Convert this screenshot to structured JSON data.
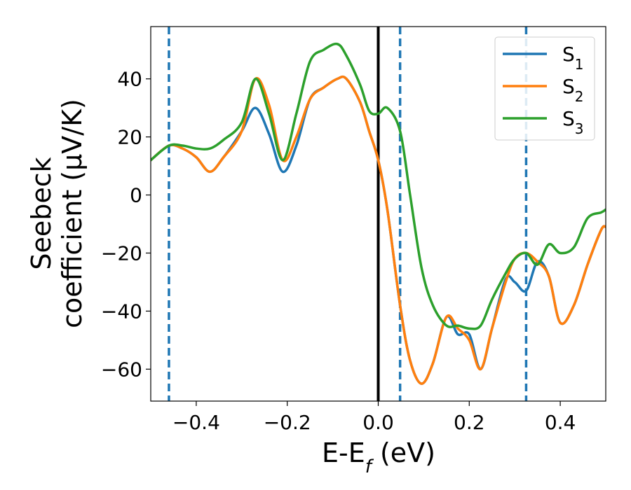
{
  "chart_data": {
    "type": "line",
    "xlabel": "E-E_f (eV)",
    "ylabel": "Seebeck coefficient (μV/K)",
    "ylabel_line1": "Seebeck",
    "ylabel_line2": "coefficient  (μV/K)",
    "xlim": [
      -0.5,
      0.5
    ],
    "ylim": [
      -71,
      58
    ],
    "x_ticks": [
      -0.4,
      -0.2,
      0.0,
      0.2,
      0.4
    ],
    "x_tick_labels": [
      "−0.4",
      "−0.2",
      "0.0",
      "0.2",
      "0.4"
    ],
    "y_ticks": [
      -60,
      -40,
      -20,
      0,
      20,
      40
    ],
    "y_tick_labels": [
      "−60",
      "−40",
      "−20",
      "0",
      "20",
      "40"
    ],
    "grid": false,
    "legend_position": "top-right",
    "vlines": [
      {
        "x": -0.46,
        "style": "dashed",
        "color": "#1f77b4"
      },
      {
        "x": 0.0,
        "style": "solid",
        "color": "#000000"
      },
      {
        "x": 0.048,
        "style": "dashed",
        "color": "#1f77b4"
      },
      {
        "x": 0.325,
        "style": "dashed",
        "color": "#1f77b4"
      }
    ],
    "series": [
      {
        "name": "S1",
        "label_main": "S",
        "label_sub": "1",
        "color": "#1f77b4",
        "x": [
          -0.5,
          -0.46,
          -0.43,
          -0.4,
          -0.37,
          -0.34,
          -0.3,
          -0.27,
          -0.24,
          -0.21,
          -0.18,
          -0.15,
          -0.12,
          -0.09,
          -0.07,
          -0.04,
          -0.02,
          0.0,
          0.02,
          0.048,
          0.07,
          0.095,
          0.12,
          0.15,
          0.175,
          0.2,
          0.225,
          0.25,
          0.28,
          0.3,
          0.325,
          0.35,
          0.375,
          0.4,
          0.43,
          0.46,
          0.49,
          0.5
        ],
        "y": [
          12,
          17,
          16,
          13,
          8,
          13,
          22,
          30,
          21,
          8,
          17,
          33,
          37,
          40,
          40,
          32,
          22,
          12,
          -5,
          -38,
          -57,
          -65,
          -58,
          -42,
          -48,
          -48,
          -60,
          -46,
          -29,
          -30,
          -33,
          -23,
          -28,
          -44,
          -38,
          -24,
          -12,
          -11
        ]
      },
      {
        "name": "S2",
        "label_main": "S",
        "label_sub": "2",
        "color": "#ff7f0e",
        "x": [
          -0.5,
          -0.46,
          -0.43,
          -0.4,
          -0.37,
          -0.34,
          -0.3,
          -0.27,
          -0.24,
          -0.21,
          -0.18,
          -0.15,
          -0.12,
          -0.09,
          -0.07,
          -0.04,
          -0.02,
          0.0,
          0.02,
          0.048,
          0.07,
          0.095,
          0.12,
          0.15,
          0.175,
          0.2,
          0.225,
          0.25,
          0.28,
          0.3,
          0.325,
          0.35,
          0.375,
          0.4,
          0.43,
          0.46,
          0.49,
          0.5
        ],
        "y": [
          12,
          17,
          16,
          13,
          8,
          13,
          22,
          40,
          31,
          12,
          20,
          33,
          37,
          40,
          40,
          32,
          22,
          12,
          -5,
          -38,
          -57,
          -65,
          -58,
          -42,
          -46,
          -50,
          -60,
          -46,
          -30,
          -22,
          -20,
          -23,
          -28,
          -44,
          -38,
          -24,
          -12,
          -11
        ]
      },
      {
        "name": "S3",
        "label_main": "S",
        "label_sub": "3",
        "color": "#2ca02c",
        "x": [
          -0.5,
          -0.46,
          -0.43,
          -0.4,
          -0.37,
          -0.34,
          -0.3,
          -0.27,
          -0.24,
          -0.21,
          -0.18,
          -0.15,
          -0.12,
          -0.09,
          -0.07,
          -0.04,
          -0.02,
          0.0,
          0.02,
          0.048,
          0.07,
          0.095,
          0.12,
          0.15,
          0.175,
          0.2,
          0.225,
          0.25,
          0.28,
          0.3,
          0.325,
          0.35,
          0.375,
          0.4,
          0.43,
          0.46,
          0.49,
          0.5
        ],
        "y": [
          12,
          17,
          17,
          16,
          16,
          19,
          25,
          40,
          28,
          12,
          28,
          46,
          50,
          52,
          48,
          38,
          29,
          28,
          30,
          22,
          0,
          -25,
          -38,
          -45,
          -45,
          -46,
          -45,
          -36,
          -27,
          -22,
          -20,
          -24,
          -17,
          -20,
          -18,
          -8,
          -6,
          -5
        ]
      }
    ]
  }
}
